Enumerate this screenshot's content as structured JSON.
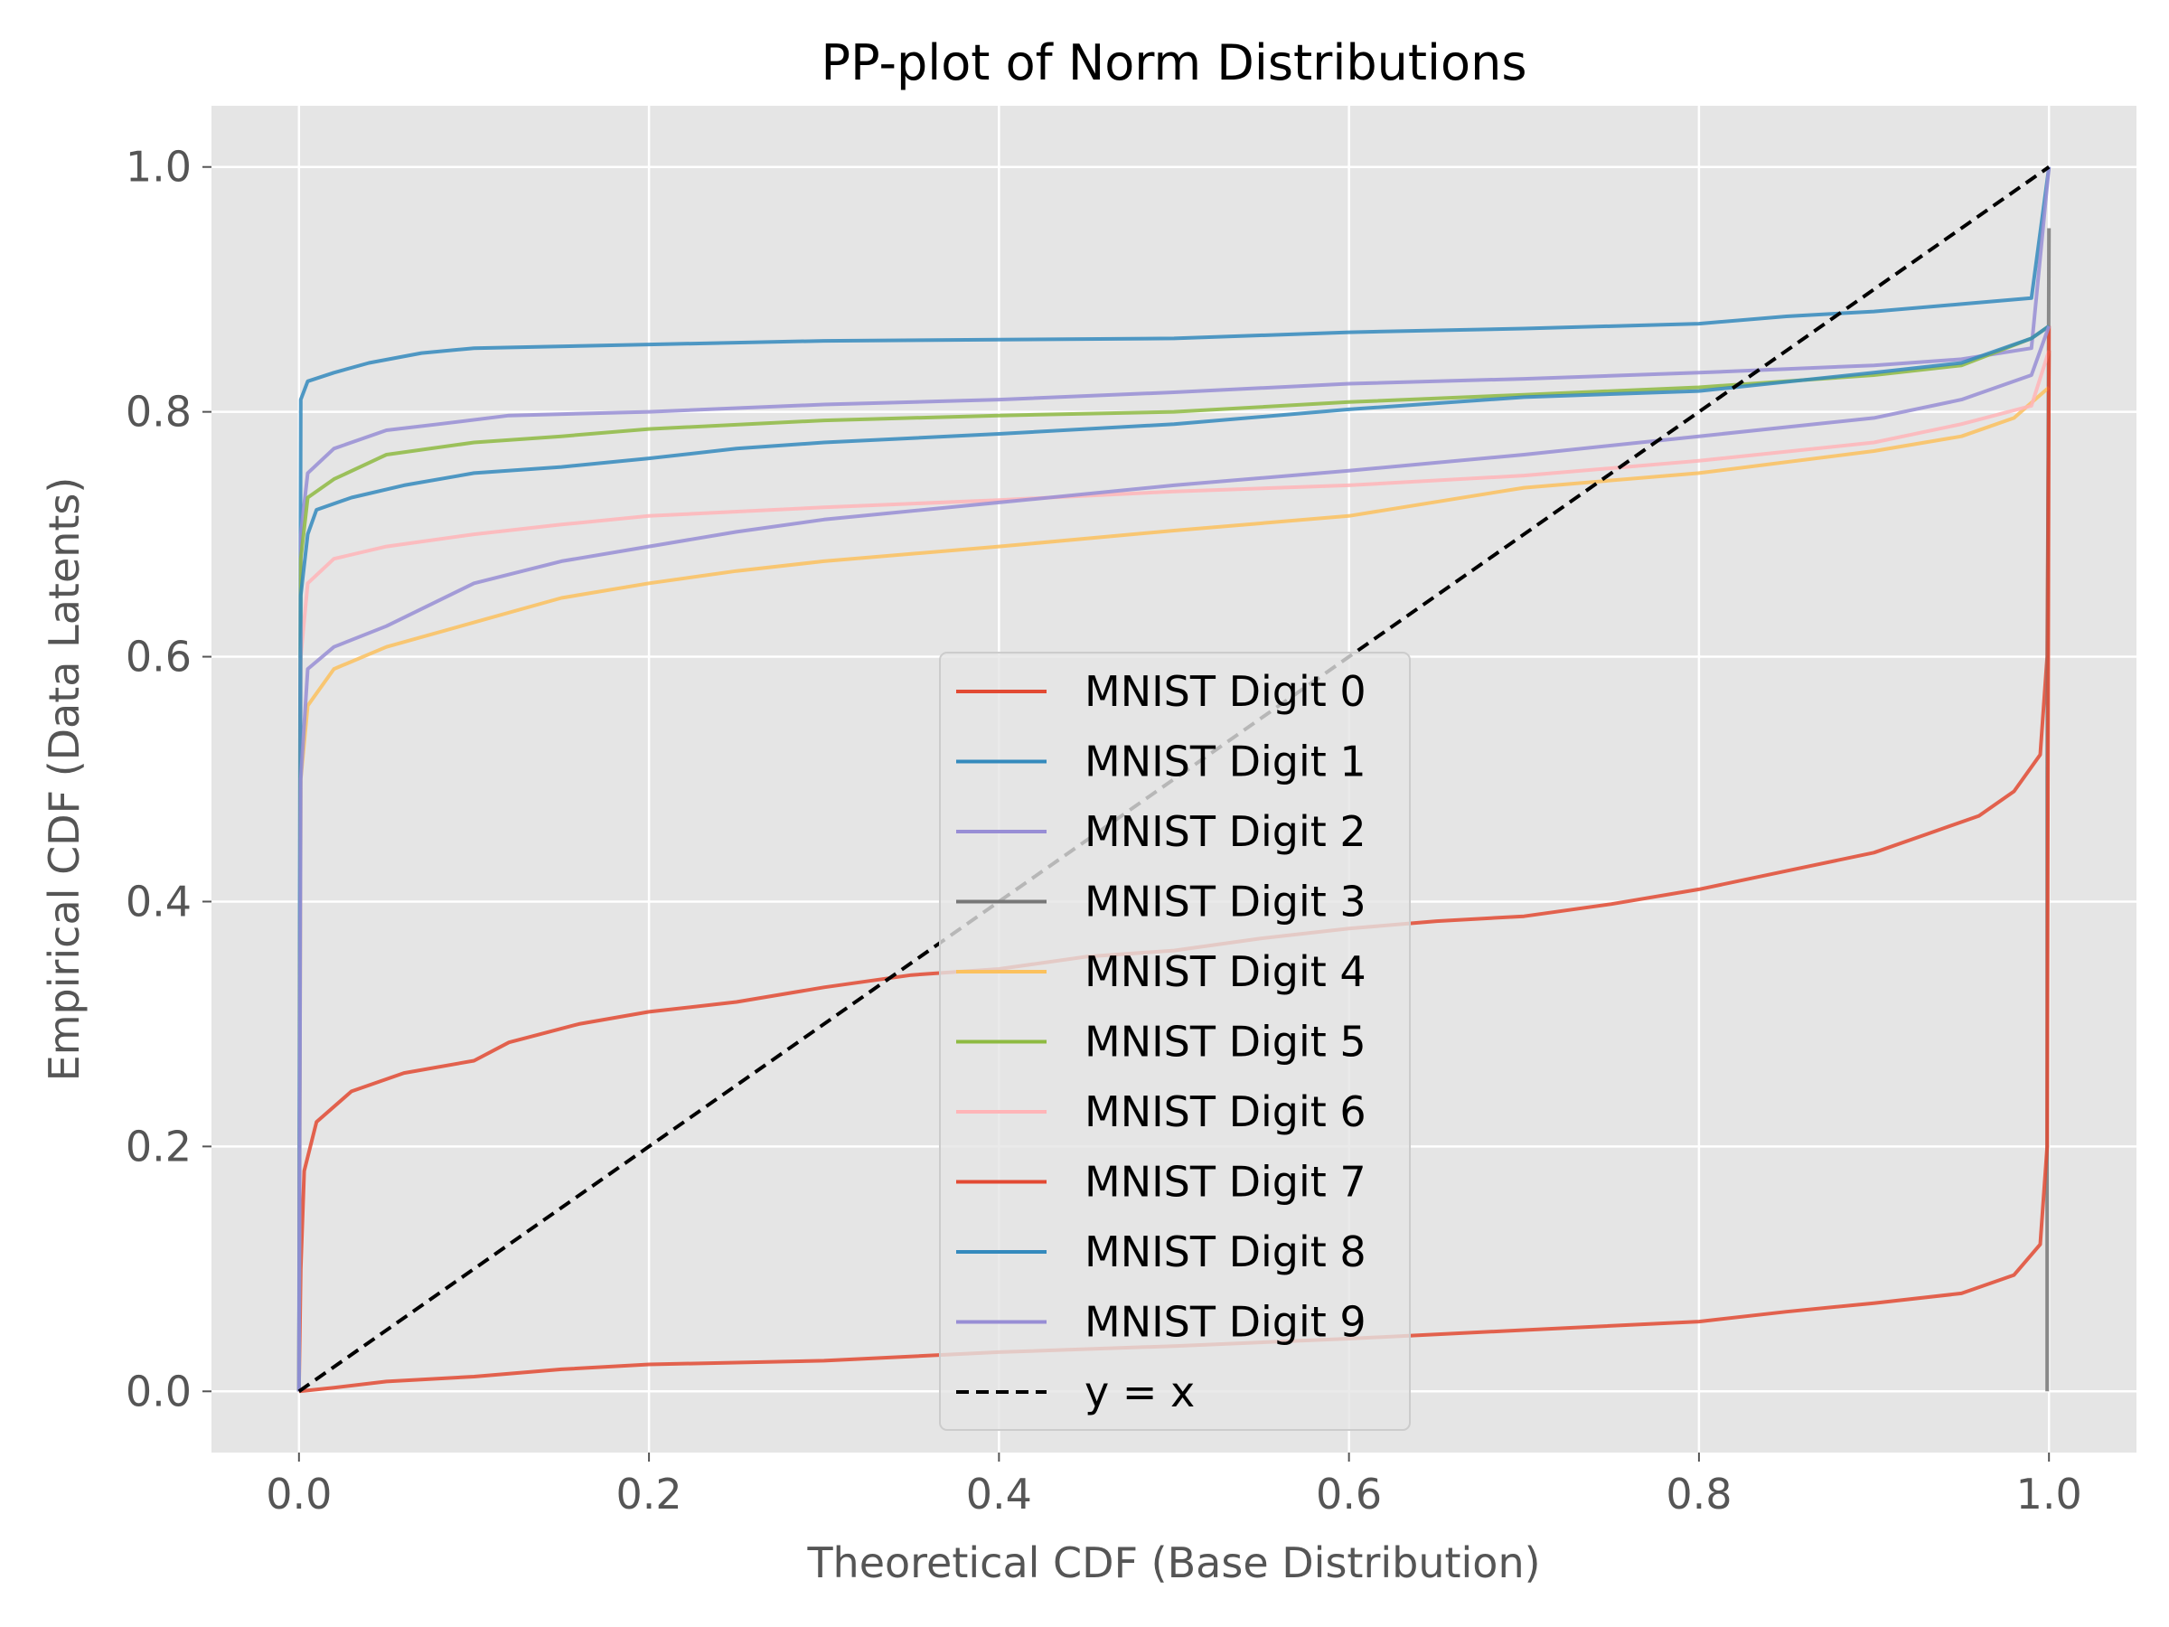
{
  "chart_data": {
    "type": "line",
    "title": "PP-plot of Norm Distributions",
    "xlabel": "Theoretical CDF (Base Distribution)",
    "ylabel": "Empirical CDF (Data Latents)",
    "xlim": [
      -0.05,
      1.05
    ],
    "ylim": [
      -0.05,
      1.05
    ],
    "xticks": [
      0.0,
      0.2,
      0.4,
      0.6,
      0.8,
      1.0
    ],
    "yticks": [
      0.0,
      0.2,
      0.4,
      0.6,
      0.8,
      1.0
    ],
    "tick_labels_x": [
      "0.0",
      "0.2",
      "0.4",
      "0.6",
      "0.8",
      "1.0"
    ],
    "tick_labels_y": [
      "0.0",
      "0.2",
      "0.4",
      "0.6",
      "0.8",
      "1.0"
    ],
    "grid": true,
    "legend_position": "center-bottom",
    "series": [
      {
        "name": "MNIST Digit 0",
        "color": "#E24A33",
        "points": [
          [
            0,
            0
          ],
          [
            0.001,
            0.1
          ],
          [
            0.003,
            0.18
          ],
          [
            0.01,
            0.22
          ],
          [
            0.03,
            0.245
          ],
          [
            0.06,
            0.26
          ],
          [
            0.1,
            0.27
          ],
          [
            0.12,
            0.285
          ],
          [
            0.16,
            0.3
          ],
          [
            0.2,
            0.31
          ],
          [
            0.25,
            0.318
          ],
          [
            0.3,
            0.33
          ],
          [
            0.35,
            0.34
          ],
          [
            0.4,
            0.345
          ],
          [
            0.45,
            0.355
          ],
          [
            0.5,
            0.36
          ],
          [
            0.55,
            0.37
          ],
          [
            0.6,
            0.378
          ],
          [
            0.65,
            0.384
          ],
          [
            0.7,
            0.388
          ],
          [
            0.75,
            0.398
          ],
          [
            0.8,
            0.41
          ],
          [
            0.85,
            0.425
          ],
          [
            0.9,
            0.44
          ],
          [
            0.93,
            0.455
          ],
          [
            0.96,
            0.47
          ],
          [
            0.98,
            0.49
          ],
          [
            0.995,
            0.52
          ],
          [
            0.999,
            0.6
          ],
          [
            1.0,
            0.85
          ]
        ]
      },
      {
        "name": "MNIST Digit 1",
        "color": "#348ABD",
        "points": [
          [
            0,
            0
          ],
          [
            0.0005,
            0.5
          ],
          [
            0.001,
            0.81
          ],
          [
            0.005,
            0.825
          ],
          [
            0.02,
            0.832
          ],
          [
            0.04,
            0.84
          ],
          [
            0.07,
            0.848
          ],
          [
            0.1,
            0.852
          ],
          [
            0.2,
            0.855
          ],
          [
            0.3,
            0.858
          ],
          [
            0.4,
            0.859
          ],
          [
            0.5,
            0.86
          ],
          [
            0.6,
            0.865
          ],
          [
            0.7,
            0.868
          ],
          [
            0.8,
            0.872
          ],
          [
            0.85,
            0.878
          ],
          [
            0.9,
            0.882
          ],
          [
            0.95,
            0.888
          ],
          [
            0.99,
            0.893
          ],
          [
            1.0,
            1.0
          ]
        ]
      },
      {
        "name": "MNIST Digit 2",
        "color": "#988ED5",
        "points": [
          [
            0,
            0
          ],
          [
            0.001,
            0.7
          ],
          [
            0.005,
            0.75
          ],
          [
            0.02,
            0.77
          ],
          [
            0.05,
            0.785
          ],
          [
            0.08,
            0.79
          ],
          [
            0.12,
            0.797
          ],
          [
            0.2,
            0.8
          ],
          [
            0.3,
            0.806
          ],
          [
            0.4,
            0.81
          ],
          [
            0.5,
            0.816
          ],
          [
            0.6,
            0.823
          ],
          [
            0.7,
            0.827
          ],
          [
            0.8,
            0.832
          ],
          [
            0.85,
            0.835
          ],
          [
            0.9,
            0.838
          ],
          [
            0.95,
            0.843
          ],
          [
            0.99,
            0.852
          ],
          [
            1.0,
            1.0
          ]
        ]
      },
      {
        "name": "MNIST Digit 3",
        "color": "#777777",
        "points": [
          [
            0.999,
            0
          ],
          [
            0.999,
            0.5
          ],
          [
            1.0,
            0.95
          ]
        ]
      },
      {
        "name": "MNIST Digit 4",
        "color": "#FBC15E",
        "points": [
          [
            0,
            0
          ],
          [
            0.001,
            0.5
          ],
          [
            0.005,
            0.56
          ],
          [
            0.02,
            0.59
          ],
          [
            0.05,
            0.608
          ],
          [
            0.1,
            0.628
          ],
          [
            0.15,
            0.648
          ],
          [
            0.2,
            0.66
          ],
          [
            0.25,
            0.67
          ],
          [
            0.3,
            0.678
          ],
          [
            0.4,
            0.69
          ],
          [
            0.5,
            0.703
          ],
          [
            0.6,
            0.715
          ],
          [
            0.7,
            0.738
          ],
          [
            0.8,
            0.75
          ],
          [
            0.9,
            0.768
          ],
          [
            0.95,
            0.78
          ],
          [
            0.98,
            0.795
          ],
          [
            1.0,
            0.82
          ]
        ]
      },
      {
        "name": "MNIST Digit 5",
        "color": "#8EBA42",
        "points": [
          [
            0,
            0
          ],
          [
            0.001,
            0.68
          ],
          [
            0.005,
            0.73
          ],
          [
            0.02,
            0.745
          ],
          [
            0.05,
            0.765
          ],
          [
            0.1,
            0.775
          ],
          [
            0.15,
            0.78
          ],
          [
            0.2,
            0.786
          ],
          [
            0.3,
            0.793
          ],
          [
            0.4,
            0.797
          ],
          [
            0.5,
            0.8
          ],
          [
            0.6,
            0.808
          ],
          [
            0.7,
            0.814
          ],
          [
            0.8,
            0.82
          ],
          [
            0.9,
            0.83
          ],
          [
            0.95,
            0.838
          ],
          [
            0.99,
            0.86
          ],
          [
            1.0,
            0.87
          ]
        ]
      },
      {
        "name": "MNIST Digit 6",
        "color": "#FFB5B8",
        "points": [
          [
            0,
            0
          ],
          [
            0.001,
            0.6
          ],
          [
            0.005,
            0.66
          ],
          [
            0.02,
            0.68
          ],
          [
            0.05,
            0.69
          ],
          [
            0.1,
            0.7
          ],
          [
            0.15,
            0.708
          ],
          [
            0.2,
            0.715
          ],
          [
            0.3,
            0.722
          ],
          [
            0.4,
            0.728
          ],
          [
            0.5,
            0.735
          ],
          [
            0.6,
            0.74
          ],
          [
            0.7,
            0.748
          ],
          [
            0.8,
            0.76
          ],
          [
            0.9,
            0.775
          ],
          [
            0.95,
            0.79
          ],
          [
            0.99,
            0.805
          ],
          [
            1.0,
            0.85
          ]
        ]
      },
      {
        "name": "MNIST Digit 7",
        "color": "#E24A33",
        "points": [
          [
            0,
            0
          ],
          [
            0.02,
            0.003
          ],
          [
            0.05,
            0.008
          ],
          [
            0.1,
            0.012
          ],
          [
            0.15,
            0.018
          ],
          [
            0.2,
            0.022
          ],
          [
            0.3,
            0.025
          ],
          [
            0.4,
            0.032
          ],
          [
            0.5,
            0.037
          ],
          [
            0.6,
            0.043
          ],
          [
            0.7,
            0.05
          ],
          [
            0.8,
            0.057
          ],
          [
            0.85,
            0.065
          ],
          [
            0.9,
            0.072
          ],
          [
            0.95,
            0.08
          ],
          [
            0.98,
            0.095
          ],
          [
            0.995,
            0.12
          ],
          [
            0.999,
            0.2
          ],
          [
            1.0,
            0.87
          ]
        ]
      },
      {
        "name": "MNIST Digit 8",
        "color": "#348ABD",
        "points": [
          [
            0,
            0
          ],
          [
            0.001,
            0.65
          ],
          [
            0.005,
            0.7
          ],
          [
            0.01,
            0.72
          ],
          [
            0.03,
            0.73
          ],
          [
            0.06,
            0.74
          ],
          [
            0.1,
            0.75
          ],
          [
            0.15,
            0.755
          ],
          [
            0.2,
            0.762
          ],
          [
            0.25,
            0.77
          ],
          [
            0.3,
            0.775
          ],
          [
            0.4,
            0.782
          ],
          [
            0.5,
            0.79
          ],
          [
            0.6,
            0.802
          ],
          [
            0.7,
            0.812
          ],
          [
            0.8,
            0.817
          ],
          [
            0.9,
            0.832
          ],
          [
            0.95,
            0.84
          ],
          [
            0.99,
            0.86
          ],
          [
            1.0,
            0.87
          ]
        ]
      },
      {
        "name": "MNIST Digit 9",
        "color": "#988ED5",
        "points": [
          [
            0,
            0
          ],
          [
            0.001,
            0.5
          ],
          [
            0.005,
            0.59
          ],
          [
            0.02,
            0.608
          ],
          [
            0.05,
            0.625
          ],
          [
            0.1,
            0.66
          ],
          [
            0.15,
            0.678
          ],
          [
            0.2,
            0.69
          ],
          [
            0.25,
            0.702
          ],
          [
            0.3,
            0.712
          ],
          [
            0.4,
            0.726
          ],
          [
            0.5,
            0.74
          ],
          [
            0.6,
            0.752
          ],
          [
            0.7,
            0.765
          ],
          [
            0.8,
            0.78
          ],
          [
            0.9,
            0.795
          ],
          [
            0.95,
            0.81
          ],
          [
            0.99,
            0.83
          ],
          [
            1.0,
            0.87
          ]
        ]
      },
      {
        "name": "y = x",
        "color": "#000000",
        "dashed": true,
        "points": [
          [
            0,
            0
          ],
          [
            1,
            1
          ]
        ]
      }
    ]
  }
}
